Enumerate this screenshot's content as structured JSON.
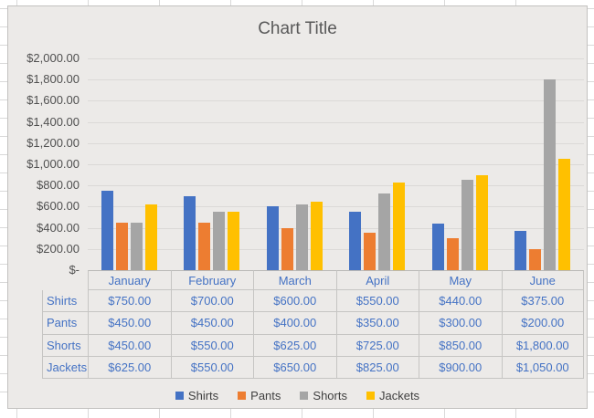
{
  "chart_data": {
    "type": "bar",
    "title": "Chart Title",
    "categories": [
      "January",
      "February",
      "March",
      "April",
      "May",
      "June"
    ],
    "series": [
      {
        "name": "Shirts",
        "color": "#4472C4",
        "values": [
          750,
          700,
          600,
          550,
          440,
          375
        ]
      },
      {
        "name": "Pants",
        "color": "#ED7D31",
        "values": [
          450,
          450,
          400,
          350,
          300,
          200
        ]
      },
      {
        "name": "Shorts",
        "color": "#A5A5A5",
        "values": [
          450,
          550,
          625,
          725,
          850,
          1800
        ]
      },
      {
        "name": "Jackets",
        "color": "#FFC000",
        "values": [
          625,
          550,
          650,
          825,
          900,
          1050
        ]
      }
    ],
    "xlabel": "",
    "ylabel": "",
    "ylim": [
      0,
      2000
    ],
    "ytick_step": 200,
    "ytick_labels_top_to_bottom": [
      "$2,000.00",
      "$1,800.00",
      "$1,600.00",
      "$1,400.00",
      "$1,200.00",
      "$1,000.00",
      "$800.00",
      "$600.00",
      "$400.00",
      "$200.00",
      "$-"
    ],
    "grid": true,
    "legend_position": "bottom",
    "data_table_shown": true
  },
  "table": {
    "months": [
      "January",
      "February",
      "March",
      "April",
      "May",
      "June"
    ],
    "rows": [
      {
        "label": "Shirts",
        "values": [
          "$750.00",
          "$700.00",
          "$600.00",
          "$550.00",
          "$440.00",
          "$375.00"
        ]
      },
      {
        "label": "Pants",
        "values": [
          "$450.00",
          "$450.00",
          "$400.00",
          "$350.00",
          "$300.00",
          "$200.00"
        ]
      },
      {
        "label": "Shorts",
        "values": [
          "$450.00",
          "$550.00",
          "$625.00",
          "$725.00",
          "$850.00",
          "$1,800.00"
        ]
      },
      {
        "label": "Jackets",
        "values": [
          "$625.00",
          "$550.00",
          "$650.00",
          "$825.00",
          "$900.00",
          "$1,050.00"
        ]
      }
    ]
  },
  "legend": {
    "items": [
      {
        "label": "Shirts",
        "color": "#4472C4"
      },
      {
        "label": "Pants",
        "color": "#ED7D31"
      },
      {
        "label": "Shorts",
        "color": "#A5A5A5"
      },
      {
        "label": "Jackets",
        "color": "#FFC000"
      }
    ]
  },
  "colors": {
    "chart_background": "#ECEAE8",
    "chart_border": "#C2C1BF",
    "plot_gridline": "#DBD9D7",
    "table_border": "#C6C5C3",
    "table_text": "#4472C4",
    "axis_text": "#505050",
    "title_text": "#595959",
    "legend_text": "#404040",
    "worksheet_gridline": "#D9D9D9"
  }
}
